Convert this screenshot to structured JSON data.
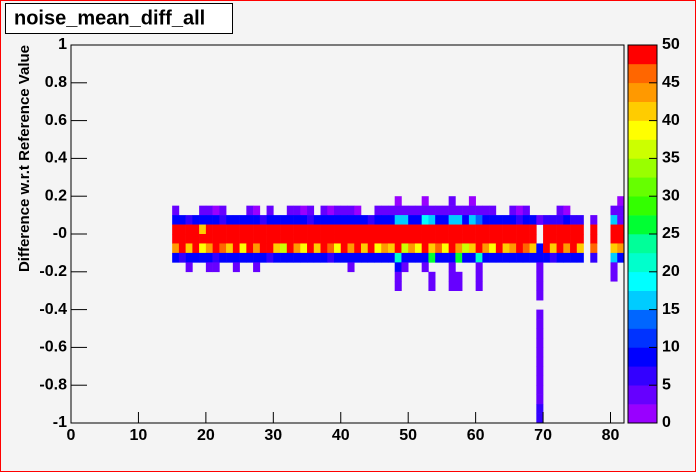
{
  "chart_data": {
    "type": "heatmap",
    "title": "noise_mean_diff_all",
    "y_label": "Difference w.r.t Reference Value",
    "xlim": [
      0,
      82
    ],
    "ylim": [
      -1,
      1
    ],
    "xticks": [
      0,
      10,
      20,
      30,
      40,
      50,
      60,
      70,
      80
    ],
    "yticks": [
      -1,
      -0.8,
      -0.6,
      -0.4,
      -0.2,
      {
        "value": 0,
        "label": "-0"
      },
      0.2,
      0.4,
      0.6,
      0.8,
      1
    ],
    "zlim": [
      0,
      50
    ],
    "zticks": [
      0,
      5,
      10,
      15,
      20,
      25,
      30,
      35,
      40,
      45,
      50
    ],
    "palette": [
      "#9900ff",
      "#6600ff",
      "#3300ff",
      "#0000ff",
      "#0033ff",
      "#0066ff",
      "#00ccff",
      "#00ffff",
      "#00ffcc",
      "#00ff99",
      "#00ff33",
      "#33ff00",
      "#66ff00",
      "#99ff00",
      "#ccff00",
      "#ffff00",
      "#ffcc00",
      "#ff9900",
      "#ff6600",
      "#ff0000"
    ],
    "rows": [
      {
        "y": 0.15,
        "x": [
          48,
          52,
          56,
          59,
          81
        ],
        "values": [
          2,
          2,
          3,
          2,
          2
        ]
      },
      {
        "y": 0.1,
        "x": [
          15,
          19,
          20,
          21,
          22,
          26,
          27,
          29,
          32,
          33,
          34,
          35,
          37,
          38,
          39,
          40,
          41,
          42,
          45,
          46,
          47,
          48,
          49,
          50,
          51,
          52,
          53,
          54,
          55,
          56,
          57,
          58,
          59,
          60,
          61,
          62,
          65,
          66,
          67,
          72,
          73,
          80,
          81
        ],
        "values": [
          3,
          3,
          3,
          2,
          3,
          3,
          2,
          3,
          3,
          3,
          2,
          3,
          3,
          2,
          3,
          3,
          3,
          2,
          3,
          3,
          3,
          4,
          3,
          3,
          3,
          4,
          3,
          3,
          3,
          4,
          3,
          3,
          4,
          3,
          3,
          3,
          3,
          2,
          3,
          3,
          2,
          3,
          3
        ]
      },
      {
        "y": 0.05,
        "x": [
          15,
          16,
          17,
          18,
          19,
          20,
          21,
          22,
          23,
          24,
          25,
          26,
          27,
          28,
          29,
          30,
          31,
          32,
          33,
          34,
          35,
          36,
          37,
          38,
          39,
          40,
          41,
          42,
          43,
          44,
          45,
          46,
          47,
          48,
          49,
          50,
          51,
          52,
          53,
          54,
          55,
          56,
          57,
          58,
          59,
          60,
          61,
          62,
          63,
          64,
          65,
          66,
          67,
          68,
          69,
          70,
          71,
          72,
          73,
          74,
          75,
          77,
          80,
          81
        ],
        "values": [
          8,
          8,
          7,
          8,
          8,
          8,
          8,
          7,
          8,
          8,
          8,
          8,
          8,
          7,
          8,
          8,
          8,
          8,
          8,
          8,
          7,
          8,
          8,
          8,
          8,
          8,
          8,
          8,
          8,
          7,
          8,
          9,
          8,
          17,
          15,
          8,
          8,
          18,
          16,
          8,
          8,
          15,
          17,
          8,
          16,
          14,
          8,
          8,
          8,
          8,
          8,
          7,
          8,
          8,
          3,
          7,
          7,
          7,
          8,
          7,
          7,
          4,
          17,
          3
        ]
      },
      {
        "y": 0,
        "x": [
          15,
          16,
          17,
          18,
          19,
          20,
          21,
          22,
          23,
          24,
          25,
          26,
          27,
          28,
          29,
          30,
          31,
          32,
          33,
          34,
          35,
          36,
          37,
          38,
          39,
          40,
          41,
          42,
          43,
          44,
          45,
          46,
          47,
          48,
          49,
          50,
          51,
          52,
          53,
          54,
          55,
          56,
          57,
          58,
          59,
          60,
          61,
          62,
          63,
          64,
          65,
          66,
          67,
          68,
          70,
          71,
          72,
          73,
          74,
          75,
          77,
          80,
          81
        ],
        "values": [
          50,
          50,
          50,
          50,
          42,
          50,
          50,
          50,
          50,
          50,
          50,
          50,
          50,
          50,
          50,
          50,
          50,
          50,
          50,
          50,
          50,
          50,
          50,
          50,
          50,
          50,
          50,
          50,
          50,
          50,
          50,
          50,
          50,
          50,
          50,
          50,
          50,
          50,
          50,
          50,
          50,
          50,
          50,
          50,
          50,
          50,
          50,
          50,
          50,
          50,
          50,
          50,
          50,
          50,
          50,
          50,
          50,
          50,
          50,
          50,
          50,
          50,
          50
        ]
      },
      {
        "y": -0.05,
        "x": [
          15,
          16,
          17,
          18,
          19,
          20,
          21,
          22,
          23,
          24,
          25,
          26,
          27,
          28,
          29,
          30,
          31,
          32,
          33,
          34,
          35,
          36,
          37,
          38,
          39,
          40,
          41,
          42,
          43,
          44,
          45,
          46,
          47,
          48,
          49,
          50,
          51,
          52,
          53,
          54,
          55,
          56,
          57,
          58,
          59,
          60,
          61,
          62,
          63,
          64,
          65,
          66,
          67,
          68,
          70,
          71,
          72,
          73,
          74,
          75,
          77,
          80,
          81
        ],
        "values": [
          50,
          50,
          50,
          50,
          50,
          50,
          50,
          50,
          50,
          50,
          50,
          50,
          50,
          50,
          50,
          50,
          50,
          50,
          50,
          50,
          50,
          50,
          50,
          50,
          50,
          50,
          50,
          50,
          50,
          50,
          50,
          50,
          50,
          50,
          50,
          50,
          50,
          50,
          50,
          50,
          50,
          50,
          50,
          50,
          50,
          50,
          50,
          50,
          50,
          50,
          50,
          50,
          50,
          50,
          50,
          50,
          50,
          50,
          50,
          50,
          50,
          50,
          50
        ]
      },
      {
        "y": -0.1,
        "x": [
          15,
          16,
          17,
          18,
          19,
          20,
          21,
          22,
          23,
          24,
          25,
          26,
          27,
          28,
          29,
          30,
          31,
          32,
          33,
          34,
          35,
          36,
          37,
          38,
          39,
          40,
          41,
          42,
          43,
          44,
          45,
          46,
          47,
          48,
          49,
          50,
          51,
          52,
          53,
          54,
          55,
          56,
          57,
          58,
          59,
          60,
          61,
          62,
          63,
          64,
          65,
          66,
          67,
          68,
          69,
          70,
          71,
          72,
          73,
          74,
          75,
          77,
          80,
          81
        ],
        "values": [
          44,
          50,
          42,
          50,
          38,
          44,
          50,
          46,
          42,
          50,
          38,
          50,
          44,
          50,
          50,
          42,
          36,
          50,
          44,
          38,
          50,
          42,
          50,
          46,
          38,
          50,
          44,
          50,
          42,
          50,
          38,
          44,
          42,
          50,
          36,
          44,
          38,
          50,
          42,
          46,
          38,
          50,
          44,
          36,
          42,
          50,
          44,
          38,
          50,
          42,
          44,
          50,
          46,
          42,
          8,
          50,
          42,
          50,
          44,
          50,
          42,
          46,
          42,
          44
        ]
      },
      {
        "y": -0.15,
        "x": [
          15,
          16,
          17,
          18,
          19,
          20,
          21,
          22,
          23,
          24,
          25,
          26,
          27,
          28,
          29,
          30,
          31,
          32,
          33,
          34,
          35,
          36,
          37,
          38,
          39,
          40,
          41,
          42,
          43,
          44,
          45,
          46,
          47,
          48,
          49,
          50,
          51,
          52,
          53,
          54,
          55,
          56,
          57,
          58,
          59,
          60,
          61,
          62,
          63,
          64,
          65,
          66,
          67,
          68,
          69,
          70,
          71,
          72,
          73,
          74,
          75,
          77,
          80,
          81
        ],
        "values": [
          8,
          7,
          8,
          8,
          8,
          8,
          7,
          8,
          8,
          8,
          8,
          8,
          8,
          8,
          7,
          8,
          8,
          8,
          8,
          8,
          8,
          8,
          8,
          7,
          8,
          8,
          8,
          8,
          8,
          8,
          8,
          8,
          8,
          20,
          8,
          8,
          8,
          8,
          26,
          8,
          8,
          8,
          26,
          8,
          8,
          20,
          8,
          8,
          8,
          8,
          8,
          8,
          8,
          8,
          8,
          8,
          7,
          8,
          8,
          8,
          8,
          7,
          16,
          8
        ]
      },
      {
        "y": -0.2,
        "x": [
          17,
          20,
          21,
          24,
          27,
          41,
          48,
          49,
          52,
          56,
          60,
          69,
          80
        ],
        "values": [
          3,
          3,
          3,
          3,
          3,
          3,
          8,
          3,
          3,
          3,
          3,
          3,
          3
        ]
      },
      {
        "y": -0.25,
        "x": [
          48,
          53,
          56,
          57,
          60,
          69,
          80
        ],
        "values": [
          3,
          3,
          3,
          3,
          3,
          3,
          3
        ]
      },
      {
        "y": -0.3,
        "x": [
          48,
          53,
          56,
          57,
          60,
          69
        ],
        "values": [
          3,
          3,
          3,
          3,
          3,
          3
        ]
      },
      {
        "y": -0.35,
        "x": [
          69
        ],
        "values": [
          3
        ]
      },
      {
        "y": -0.45,
        "x": [
          69
        ],
        "values": [
          3
        ]
      },
      {
        "y": -0.5,
        "x": [
          69
        ],
        "values": [
          3
        ]
      },
      {
        "y": -0.55,
        "x": [
          69
        ],
        "values": [
          3
        ]
      },
      {
        "y": -0.6,
        "x": [
          69
        ],
        "values": [
          3
        ]
      },
      {
        "y": -0.65,
        "x": [
          69
        ],
        "values": [
          3
        ]
      },
      {
        "y": -0.7,
        "x": [
          69
        ],
        "values": [
          3
        ]
      },
      {
        "y": -0.75,
        "x": [
          69
        ],
        "values": [
          3
        ]
      },
      {
        "y": -0.8,
        "x": [
          69
        ],
        "values": [
          3
        ]
      },
      {
        "y": -0.85,
        "x": [
          69
        ],
        "values": [
          3
        ]
      },
      {
        "y": -0.9,
        "x": [
          69
        ],
        "values": [
          3
        ]
      },
      {
        "y": -0.95,
        "x": [
          69
        ],
        "values": [
          6
        ]
      },
      {
        "y": -1,
        "x": [
          69
        ],
        "values": [
          6
        ]
      }
    ]
  }
}
